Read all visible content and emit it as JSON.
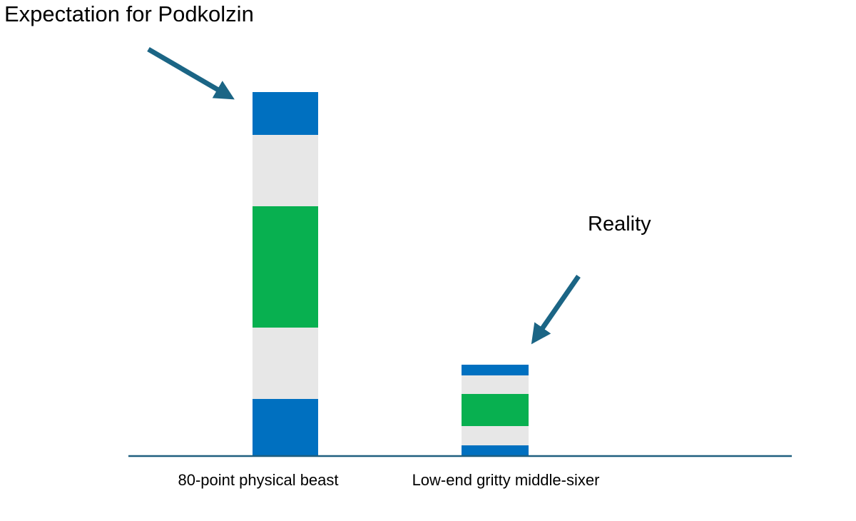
{
  "chart_data": {
    "type": "bar",
    "stacked": true,
    "categories": [
      "80-point physical beast",
      "Low-end gritty middle-sixer"
    ],
    "series": [
      {
        "values": [
          80,
          15
        ]
      },
      {
        "values": [
          100,
          27
        ]
      },
      {
        "values": [
          170,
          45
        ]
      },
      {
        "values": [
          100,
          26
        ]
      },
      {
        "values": [
          60,
          15
        ]
      }
    ],
    "series_colors": [
      "#0070C0",
      "#E7E7E7",
      "#08B050",
      "#E7E7E7",
      "#0070C0"
    ],
    "axis_color": "#1F5F7F",
    "ylim": [
      0,
      510
    ],
    "grid": false,
    "title": "",
    "xlabel": "",
    "ylabel": "",
    "annotations": [
      {
        "text": "Expectation for Podkolzin",
        "points_to": "80-point physical beast",
        "arrow_color": "#1B6585"
      },
      {
        "text": "Reality",
        "points_to": "Low-end gritty middle-sixer",
        "arrow_color": "#1B6585"
      }
    ]
  }
}
